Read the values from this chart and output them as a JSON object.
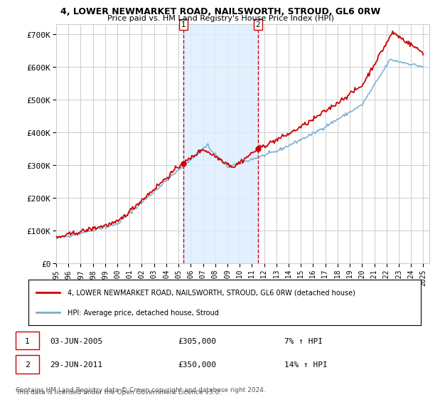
{
  "title_line1": "4, LOWER NEWMARKET ROAD, NAILSWORTH, STROUD, GL6 0RW",
  "title_line2": "Price paid vs. HM Land Registry's House Price Index (HPI)",
  "ylabel_ticks": [
    "£0",
    "£100K",
    "£200K",
    "£300K",
    "£400K",
    "£500K",
    "£600K",
    "£700K"
  ],
  "ylim": [
    0,
    730000
  ],
  "yticks": [
    0,
    100000,
    200000,
    300000,
    400000,
    500000,
    600000,
    700000
  ],
  "sale1_date": 2005.42,
  "sale1_price": 305000,
  "sale1_label": "1",
  "sale2_date": 2011.49,
  "sale2_price": 350000,
  "sale2_label": "2",
  "legend_line1": "4, LOWER NEWMARKET ROAD, NAILSWORTH, STROUD, GL6 0RW (detached house)",
  "legend_line2": "HPI: Average price, detached house, Stroud",
  "annotation1_date": "03-JUN-2005",
  "annotation1_price": "£305,000",
  "annotation1_hpi": "7% ↑ HPI",
  "annotation2_date": "29-JUN-2011",
  "annotation2_price": "£350,000",
  "annotation2_hpi": "14% ↑ HPI",
  "footnote_line1": "Contains HM Land Registry data © Crown copyright and database right 2024.",
  "footnote_line2": "This data is licensed under the Open Government Licence v3.0.",
  "line_color_red": "#cc0000",
  "line_color_blue": "#7aadd0",
  "vline_color": "#cc0000",
  "bg_band_color": "#ddeeff",
  "grid_color": "#cccccc",
  "background_color": "#ffffff"
}
